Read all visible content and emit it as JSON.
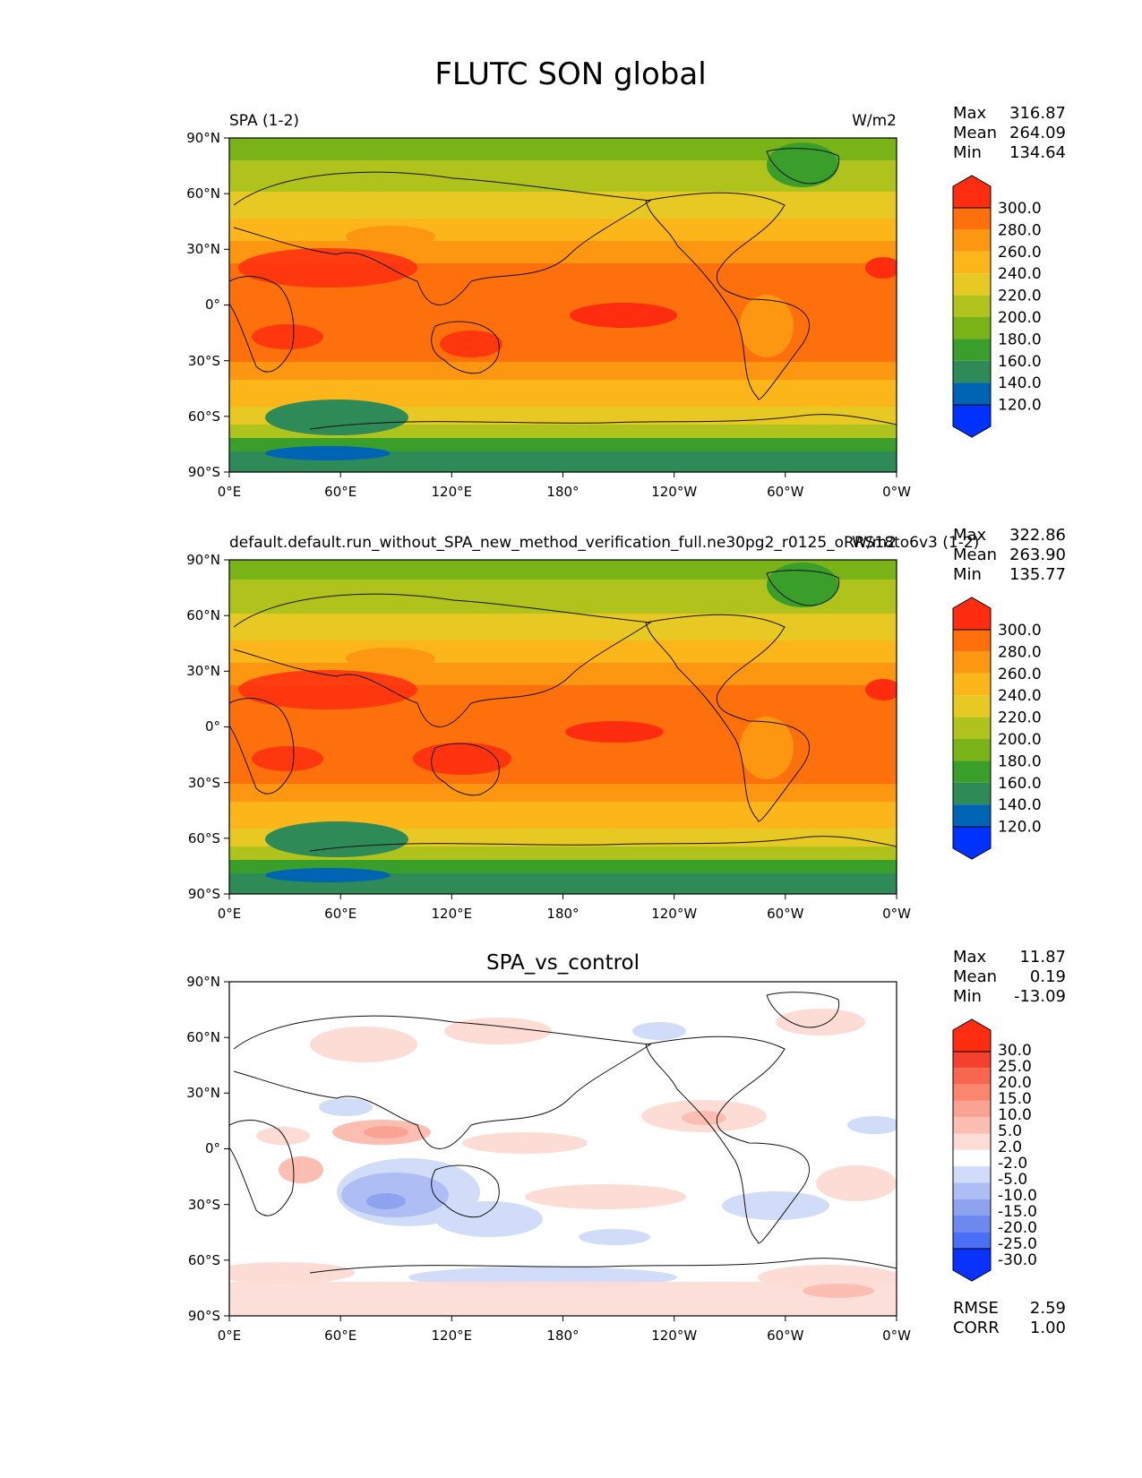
{
  "figure": {
    "title": "FLUTC SON global"
  },
  "axes": {
    "lat_ticks": [
      "90°N",
      "60°N",
      "30°N",
      "0°",
      "30°S",
      "60°S",
      "90°S"
    ],
    "lon_ticks": [
      "0°E",
      "60°E",
      "120°E",
      "180°",
      "120°W",
      "60°W",
      "0°W"
    ]
  },
  "colors": {
    "abs_levels": [
      "#0032ff",
      "#0064b4",
      "#2e8b57",
      "#3a9e2a",
      "#7ab317",
      "#b0c21c",
      "#e8c823",
      "#fcb61a",
      "#fd9712",
      "#fd700c",
      "#ff2d10"
    ],
    "diff_levels": [
      "#0a32ff",
      "#2f55ff",
      "#4d6ef6",
      "#6d89f0",
      "#8da3f0",
      "#aebef4",
      "#d0dcf8",
      "#ffffff",
      "#fddcd6",
      "#fcbeb2",
      "#fba392",
      "#fb8670",
      "#f96650",
      "#f54030",
      "#ff2d10"
    ]
  },
  "chart_data": [
    {
      "type": "heatmap",
      "panel": "test",
      "title_left": "SPA (1-2)",
      "title_right": "W/m2",
      "stats": {
        "max_label": "Max",
        "max": "316.87",
        "mean_label": "Mean",
        "mean": "264.09",
        "min_label": "Min",
        "min": "134.64"
      },
      "colorbar_ticks": [
        "300.0",
        "280.0",
        "260.0",
        "240.0",
        "220.0",
        "200.0",
        "180.0",
        "160.0",
        "140.0",
        "120.0"
      ],
      "colorbar_range": [
        110,
        310
      ],
      "lat_range": [
        -90,
        90
      ],
      "lon_range": [
        0,
        360
      ]
    },
    {
      "type": "heatmap",
      "panel": "reference",
      "title_left": "default.default.run_without_SPA_new_method_verification_full.ne30pg2_r0125_oRRS18to6v3 (1-2)",
      "title_right": "W/m2",
      "stats": {
        "max_label": "Max",
        "max": "322.86",
        "mean_label": "Mean",
        "mean": "263.90",
        "min_label": "Min",
        "min": "135.77"
      },
      "colorbar_ticks": [
        "300.0",
        "280.0",
        "260.0",
        "240.0",
        "220.0",
        "200.0",
        "180.0",
        "160.0",
        "140.0",
        "120.0"
      ],
      "colorbar_range": [
        110,
        310
      ],
      "lat_range": [
        -90,
        90
      ],
      "lon_range": [
        0,
        360
      ]
    },
    {
      "type": "heatmap",
      "panel": "difference",
      "title_center": "SPA_vs_control",
      "stats": {
        "max_label": "Max",
        "max": "11.87",
        "mean_label": "Mean",
        "mean": "0.19",
        "min_label": "Min",
        "min": "-13.09"
      },
      "colorbar_ticks": [
        "30.0",
        "25.0",
        "20.0",
        "15.0",
        "10.0",
        "5.0",
        "2.0",
        "-2.0",
        "-5.0",
        "-10.0",
        "-15.0",
        "-20.0",
        "-25.0",
        "-30.0"
      ],
      "metrics": {
        "rmse_label": "RMSE",
        "rmse": "2.59",
        "corr_label": "CORR",
        "corr": "1.00"
      },
      "lat_range": [
        -90,
        90
      ],
      "lon_range": [
        0,
        360
      ]
    }
  ]
}
